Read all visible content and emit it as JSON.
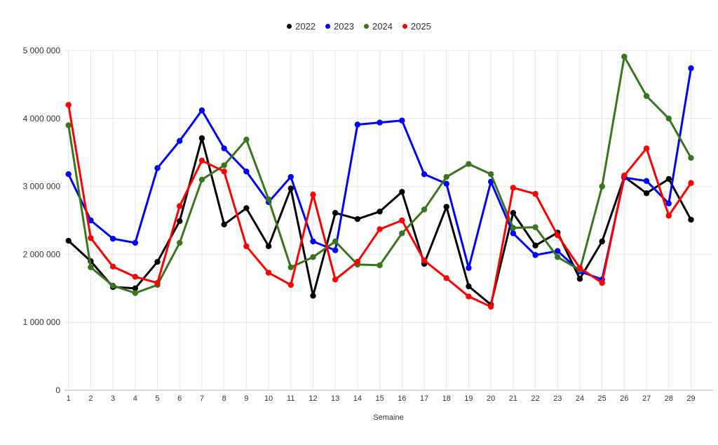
{
  "chart_data": {
    "type": "line",
    "title": "",
    "xlabel": "Semaine",
    "ylabel": "",
    "x": [
      1,
      2,
      3,
      4,
      5,
      6,
      7,
      8,
      9,
      10,
      11,
      12,
      13,
      14,
      15,
      16,
      17,
      18,
      19,
      20,
      21,
      22,
      23,
      24,
      25,
      26,
      27,
      28,
      29
    ],
    "ylim": [
      0,
      5000000
    ],
    "y_ticks": [
      0,
      1000000,
      2000000,
      3000000,
      4000000,
      5000000
    ],
    "y_tick_labels": [
      "0",
      "1 000 000",
      "2 000 000",
      "3 000 000",
      "4 000 000",
      "5 000 000"
    ],
    "grid": true,
    "legend_position": "top",
    "series": [
      {
        "name": "2022",
        "color": "#000000",
        "values": [
          2200000,
          1900000,
          1520000,
          1500000,
          1890000,
          2490000,
          3710000,
          2440000,
          2680000,
          2120000,
          2970000,
          1390000,
          2610000,
          2520000,
          2630000,
          2920000,
          1860000,
          2700000,
          1530000,
          1260000,
          2610000,
          2130000,
          2320000,
          1640000,
          2190000,
          3140000,
          2900000,
          3110000,
          2510000
        ]
      },
      {
        "name": "2023",
        "color": "#0000ff",
        "values": [
          3180000,
          2500000,
          2230000,
          2170000,
          3270000,
          3670000,
          4120000,
          3560000,
          3220000,
          2770000,
          3140000,
          2190000,
          2060000,
          3910000,
          3940000,
          3970000,
          3180000,
          3040000,
          1800000,
          3070000,
          2310000,
          1990000,
          2050000,
          1750000,
          1630000,
          3130000,
          3080000,
          2750000,
          4740000
        ]
      },
      {
        "name": "2024",
        "color": "#38761d",
        "values": [
          3900000,
          1810000,
          1540000,
          1430000,
          1550000,
          2170000,
          3100000,
          3310000,
          3690000,
          2810000,
          1810000,
          1960000,
          2190000,
          1850000,
          1840000,
          2310000,
          2660000,
          3140000,
          3330000,
          3180000,
          2390000,
          2400000,
          1960000,
          1770000,
          3000000,
          4910000,
          4330000,
          4000000,
          3420000
        ]
      },
      {
        "name": "2025",
        "color": "#ff0000",
        "values": [
          4200000,
          2240000,
          1820000,
          1670000,
          1580000,
          2710000,
          3380000,
          3220000,
          2120000,
          1730000,
          1550000,
          2880000,
          1630000,
          1890000,
          2370000,
          2500000,
          1910000,
          1650000,
          1380000,
          1230000,
          2980000,
          2890000,
          2280000,
          1800000,
          1580000,
          3160000,
          3560000,
          2570000,
          3050000
        ]
      }
    ]
  },
  "colors": {
    "background": "#ffffff",
    "gridline": "#e6e6e6",
    "baseline": "#b3b3b3",
    "tick_text": "#333333"
  }
}
